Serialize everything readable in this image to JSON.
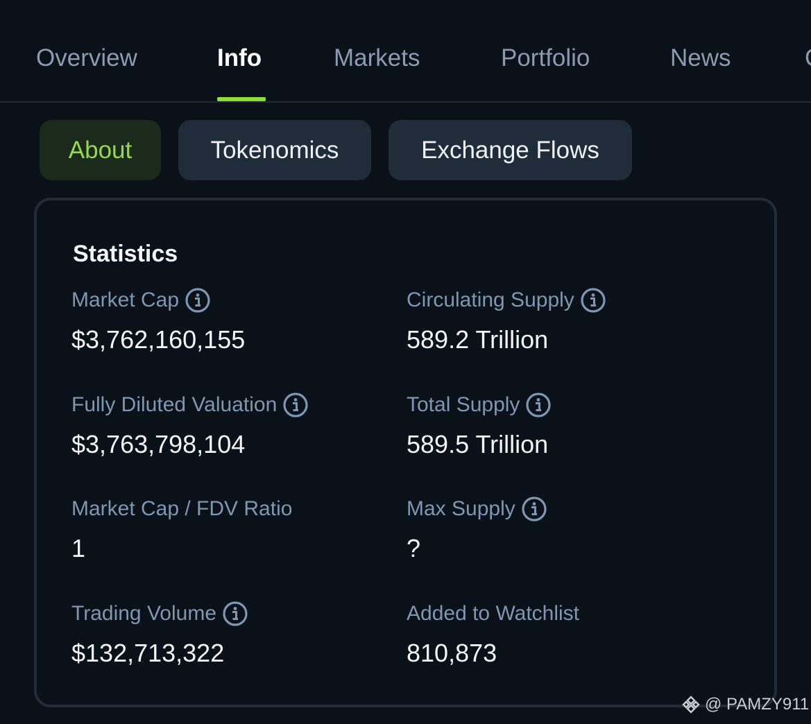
{
  "top_tabs": [
    "Overview",
    "Info",
    "Markets",
    "Portfolio",
    "News",
    "C"
  ],
  "sub_tabs": [
    "About",
    "Tokenomics",
    "Exchange Flows"
  ],
  "statistics": {
    "title": "Statistics",
    "items": [
      {
        "label": "Market Cap",
        "value": "$3,762,160,155",
        "info": true
      },
      {
        "label": "Circulating Supply",
        "value": "589.2 Trillion",
        "info": true
      },
      {
        "label": "Fully Diluted Valuation",
        "value": "$3,763,798,104",
        "info": true
      },
      {
        "label": "Total Supply",
        "value": "589.5 Trillion",
        "info": true
      },
      {
        "label": "Market Cap / FDV Ratio",
        "value": "1",
        "info": false
      },
      {
        "label": "Max Supply",
        "value": "?",
        "info": true
      },
      {
        "label": "Trading Volume",
        "value": "$132,713,322",
        "info": true
      },
      {
        "label": "Added to Watchlist",
        "value": "810,873",
        "info": false
      }
    ]
  },
  "watermark": {
    "text": "@ PAMZY911",
    "icon": "binance-logo-icon"
  },
  "colors": {
    "background": "#0b1118",
    "accent": "#8fdc3a",
    "label": "#7e97b2",
    "chip": "#212c3a"
  }
}
